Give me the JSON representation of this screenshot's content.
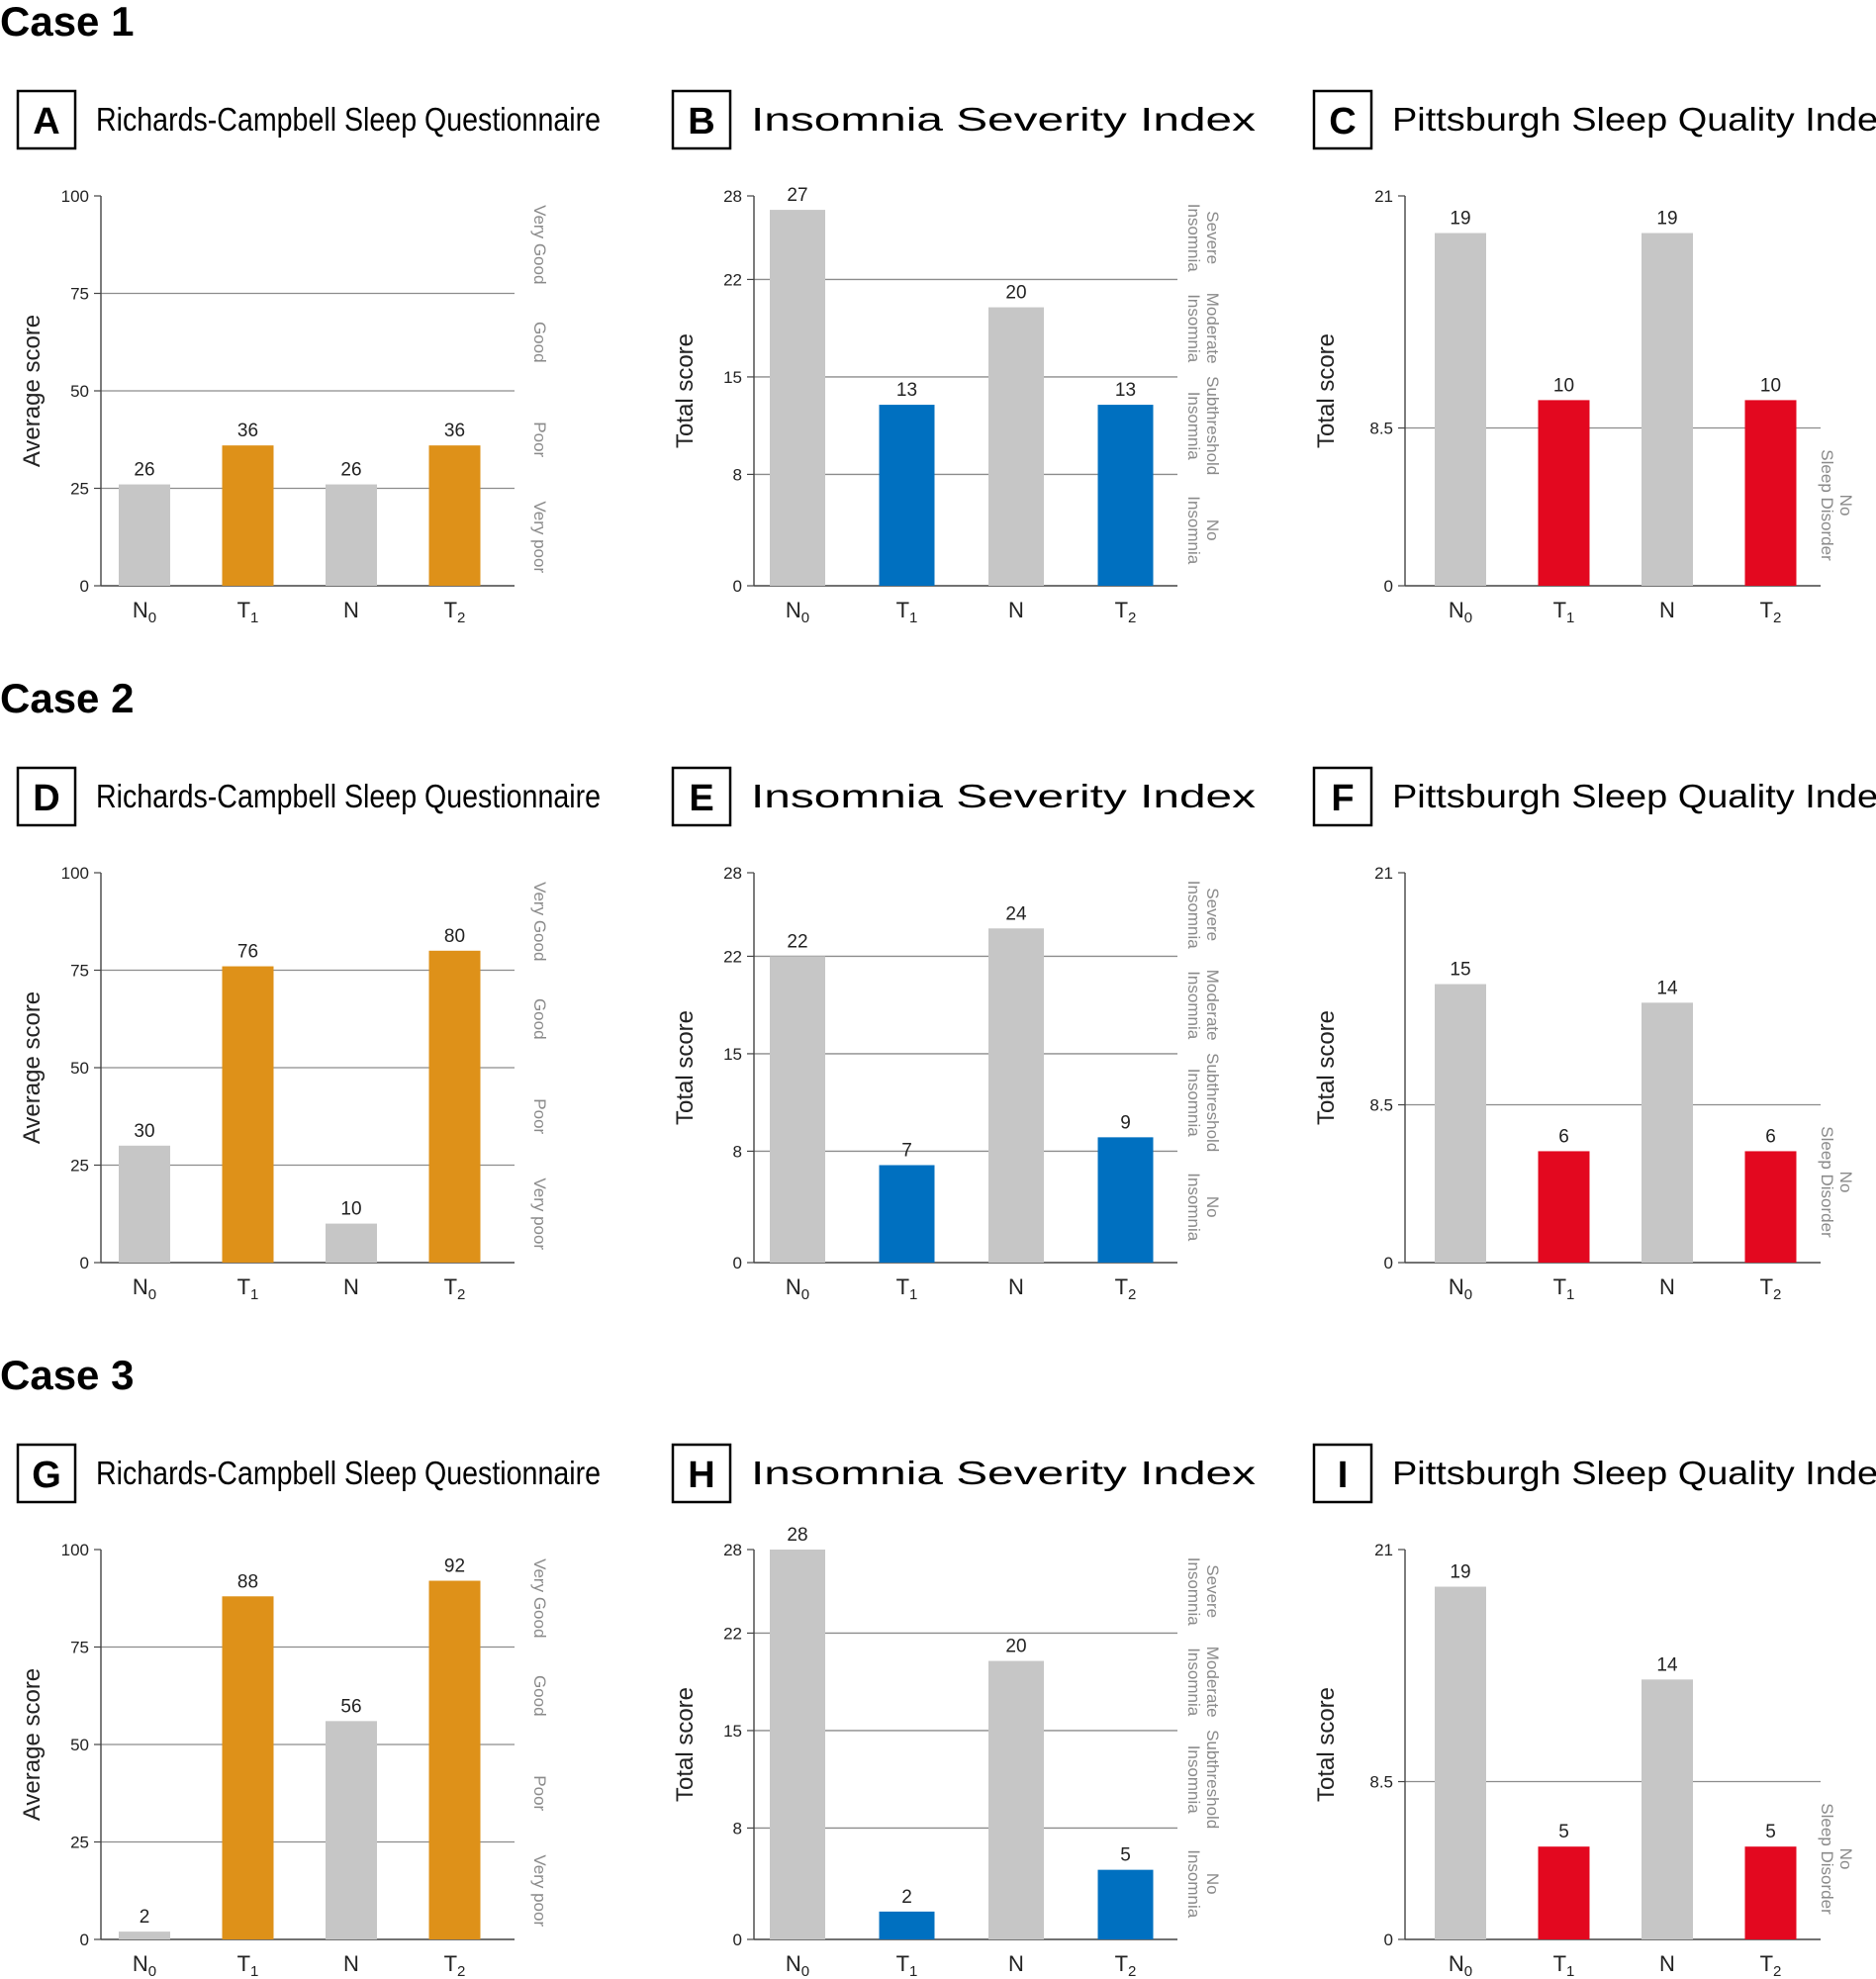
{
  "figure": {
    "cases": [
      {
        "label": "Case 1",
        "panels": [
          {
            "letter": "A",
            "title": "Richards-Campbell Sleep Questionnaire"
          },
          {
            "letter": "B",
            "title": "Insomnia Severity Index"
          },
          {
            "letter": "C",
            "title": "Pittsburgh Sleep Quality Index"
          }
        ]
      },
      {
        "label": "Case 2",
        "panels": [
          {
            "letter": "D",
            "title": "Richards-Campbell Sleep Questionnaire"
          },
          {
            "letter": "E",
            "title": "Insomnia Severity Index"
          },
          {
            "letter": "F",
            "title": "Pittsburgh Sleep Quality Index"
          }
        ]
      },
      {
        "label": "Case 3",
        "panels": [
          {
            "letter": "G",
            "title": "Richards-Campbell Sleep Questionnaire"
          },
          {
            "letter": "H",
            "title": "Insomnia Severity Index"
          },
          {
            "letter": "I",
            "title": "Pittsburgh Sleep Quality Index"
          }
        ]
      }
    ]
  },
  "chart_data": [
    {
      "panel": "A",
      "type": "bar",
      "title": "Richards-Campbell Sleep Questionnaire",
      "categories": [
        [
          "N",
          "0"
        ],
        [
          "T",
          "1"
        ],
        [
          "N",
          ""
        ],
        [
          "T",
          "2"
        ]
      ],
      "values": [
        26,
        36,
        26,
        36
      ],
      "colors": [
        "#c6c6c6",
        "#de9119",
        "#c6c6c6",
        "#de9119"
      ],
      "ylabel": "Average score",
      "ylim": [
        0,
        100
      ],
      "yticks": [
        0,
        25,
        50,
        75,
        100
      ],
      "gridlines": [
        25,
        50,
        75
      ],
      "zones": [
        "Very Good",
        "Good",
        "Poor",
        "Very poor"
      ]
    },
    {
      "panel": "B",
      "type": "bar",
      "title": "Insomnia Severity Index",
      "categories": [
        [
          "N",
          "0"
        ],
        [
          "T",
          "1"
        ],
        [
          "N",
          ""
        ],
        [
          "T",
          "2"
        ]
      ],
      "values": [
        27,
        13,
        20,
        13
      ],
      "colors": [
        "#c6c6c6",
        "#0070c0",
        "#c6c6c6",
        "#0070c0"
      ],
      "ylabel": "Total score",
      "ylim": [
        0,
        28
      ],
      "yticks": [
        0,
        8,
        15,
        22,
        28
      ],
      "gridlines": [
        8,
        15,
        22
      ],
      "zones": [
        [
          "Severe",
          "Insomnia"
        ],
        [
          "Moderate",
          "Insomnia"
        ],
        [
          "Subthreshold",
          "Insomnia"
        ],
        [
          "No",
          "Insomnia"
        ]
      ]
    },
    {
      "panel": "C",
      "type": "bar",
      "title": "Pittsburgh Sleep Quality Index",
      "categories": [
        [
          "N",
          "0"
        ],
        [
          "T",
          "1"
        ],
        [
          "N",
          ""
        ],
        [
          "T",
          "2"
        ]
      ],
      "values": [
        19,
        10,
        19,
        10
      ],
      "colors": [
        "#c6c6c6",
        "#e3081f",
        "#c6c6c6",
        "#e3081f"
      ],
      "ylabel": "Total score",
      "ylim": [
        0,
        21
      ],
      "yticks": [
        0,
        8.5,
        21
      ],
      "gridlines": [
        8.5
      ],
      "zones": [
        [
          "No",
          "Sleep Disorder"
        ]
      ]
    },
    {
      "panel": "D",
      "type": "bar",
      "title": "Richards-Campbell Sleep Questionnaire",
      "categories": [
        [
          "N",
          "0"
        ],
        [
          "T",
          "1"
        ],
        [
          "N",
          ""
        ],
        [
          "T",
          "2"
        ]
      ],
      "values": [
        30,
        76,
        10,
        80
      ],
      "colors": [
        "#c6c6c6",
        "#de9119",
        "#c6c6c6",
        "#de9119"
      ],
      "ylabel": "Average score",
      "ylim": [
        0,
        100
      ],
      "yticks": [
        0,
        25,
        50,
        75,
        100
      ],
      "gridlines": [
        25,
        50,
        75
      ],
      "zones": [
        "Very Good",
        "Good",
        "Poor",
        "Very poor"
      ]
    },
    {
      "panel": "E",
      "type": "bar",
      "title": "Insomnia Severity Index",
      "categories": [
        [
          "N",
          "0"
        ],
        [
          "T",
          "1"
        ],
        [
          "N",
          ""
        ],
        [
          "T",
          "2"
        ]
      ],
      "values": [
        22,
        7,
        24,
        9
      ],
      "colors": [
        "#c6c6c6",
        "#0070c0",
        "#c6c6c6",
        "#0070c0"
      ],
      "ylabel": "Total score",
      "ylim": [
        0,
        28
      ],
      "yticks": [
        0,
        8,
        15,
        22,
        28
      ],
      "gridlines": [
        8,
        15,
        22
      ],
      "zones": [
        [
          "Severe",
          "Insomnia"
        ],
        [
          "Moderate",
          "Insomnia"
        ],
        [
          "Subthreshold",
          "Insomnia"
        ],
        [
          "No",
          "Insomnia"
        ]
      ]
    },
    {
      "panel": "F",
      "type": "bar",
      "title": "Pittsburgh Sleep Quality Index",
      "categories": [
        [
          "N",
          "0"
        ],
        [
          "T",
          "1"
        ],
        [
          "N",
          ""
        ],
        [
          "T",
          "2"
        ]
      ],
      "values": [
        15,
        6,
        14,
        6
      ],
      "colors": [
        "#c6c6c6",
        "#e3081f",
        "#c6c6c6",
        "#e3081f"
      ],
      "ylabel": "Total score",
      "ylim": [
        0,
        21
      ],
      "yticks": [
        0,
        8.5,
        21
      ],
      "gridlines": [
        8.5
      ],
      "zones": [
        [
          "No",
          "Sleep Disorder"
        ]
      ]
    },
    {
      "panel": "G",
      "type": "bar",
      "title": "Richards-Campbell Sleep Questionnaire",
      "categories": [
        [
          "N",
          "0"
        ],
        [
          "T",
          "1"
        ],
        [
          "N",
          ""
        ],
        [
          "T",
          "2"
        ]
      ],
      "values": [
        2,
        88,
        56,
        92
      ],
      "colors": [
        "#c6c6c6",
        "#de9119",
        "#c6c6c6",
        "#de9119"
      ],
      "ylabel": "Average score",
      "ylim": [
        0,
        100
      ],
      "yticks": [
        0,
        25,
        50,
        75,
        100
      ],
      "gridlines": [
        25,
        50,
        75
      ],
      "zones": [
        "Very Good",
        "Good",
        "Poor",
        "Very poor"
      ]
    },
    {
      "panel": "H",
      "type": "bar",
      "title": "Insomnia Severity Index",
      "categories": [
        [
          "N",
          "0"
        ],
        [
          "T",
          "1"
        ],
        [
          "N",
          ""
        ],
        [
          "T",
          "2"
        ]
      ],
      "values": [
        28,
        2,
        20,
        5
      ],
      "colors": [
        "#c6c6c6",
        "#0070c0",
        "#c6c6c6",
        "#0070c0"
      ],
      "ylabel": "Total score",
      "ylim": [
        0,
        28
      ],
      "yticks": [
        0,
        8,
        15,
        22,
        28
      ],
      "gridlines": [
        8,
        15,
        22
      ],
      "zones": [
        [
          "Severe",
          "Insomnia"
        ],
        [
          "Moderate",
          "Insomnia"
        ],
        [
          "Subthreshold",
          "Insomnia"
        ],
        [
          "No",
          "Insomnia"
        ]
      ]
    },
    {
      "panel": "I",
      "type": "bar",
      "title": "Pittsburgh Sleep Quality Index",
      "categories": [
        [
          "N",
          "0"
        ],
        [
          "T",
          "1"
        ],
        [
          "N",
          ""
        ],
        [
          "T",
          "2"
        ]
      ],
      "values": [
        19,
        5,
        14,
        5
      ],
      "colors": [
        "#c6c6c6",
        "#e3081f",
        "#c6c6c6",
        "#e3081f"
      ],
      "ylabel": "Total score",
      "ylim": [
        0,
        21
      ],
      "yticks": [
        0,
        8.5,
        21
      ],
      "gridlines": [
        8.5
      ],
      "zones": [
        [
          "No",
          "Sleep Disorder"
        ]
      ]
    }
  ]
}
